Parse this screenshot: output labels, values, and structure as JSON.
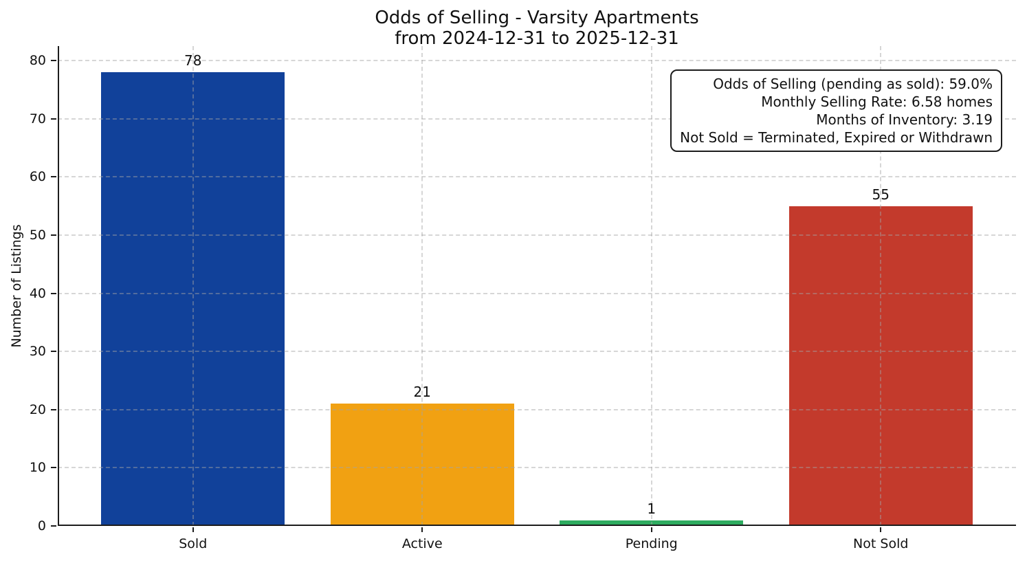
{
  "chart_data": {
    "type": "bar",
    "title": "Odds of Selling - Varsity Apartments",
    "subtitle": "from 2024-12-31 to 2025-12-31",
    "categories": [
      "Sold",
      "Active",
      "Pending",
      "Not Sold"
    ],
    "values": [
      78,
      21,
      1,
      55
    ],
    "bar_colors": [
      "#11419a",
      "#f1a112",
      "#2eac60",
      "#c33a2c"
    ],
    "value_labels": [
      "78",
      "21",
      "1",
      "55"
    ],
    "xlabel": "",
    "ylabel": "Number of Listings",
    "yticks": [
      0,
      10,
      20,
      30,
      40,
      50,
      60,
      70,
      80
    ],
    "ylim": [
      0,
      82.5
    ],
    "xlim": [
      -0.59,
      3.59
    ],
    "bar_width": 0.8,
    "grid": {
      "visible": true,
      "style": "dashed",
      "axes": "both",
      "color": "#cfcfcf"
    },
    "axis_color": "#1c1c1c",
    "legend": "none",
    "annotations": [
      "Odds of Selling (pending as sold): 59.0%",
      "Monthly Selling Rate: 6.58 homes",
      "Months of Inventory: 3.19",
      "Not Sold = Terminated, Expired or Withdrawn"
    ]
  }
}
